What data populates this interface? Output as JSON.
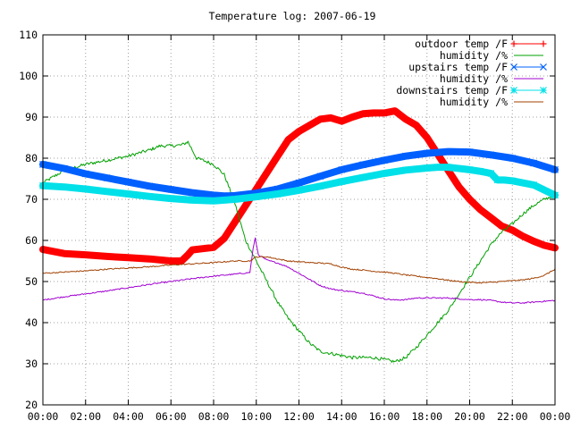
{
  "chart_data": {
    "type": "line",
    "title": "Temperature log: 2007-06-19",
    "xlabel": "",
    "ylabel": "",
    "xlim": [
      0,
      24
    ],
    "ylim": [
      20,
      110
    ],
    "grid": true,
    "legend_position": "top-right",
    "x_ticks": [
      "00:00",
      "02:00",
      "04:00",
      "06:00",
      "08:00",
      "10:00",
      "12:00",
      "14:00",
      "16:00",
      "18:00",
      "20:00",
      "22:00",
      "00:00"
    ],
    "y_ticks": [
      "20",
      "30",
      "40",
      "50",
      "60",
      "70",
      "80",
      "90",
      "100",
      "110"
    ],
    "x_unit": "hours",
    "series": [
      {
        "name": "outdoor temp /F",
        "color": "#ff0000",
        "marker": "plus",
        "heavy": true,
        "x": [
          0,
          1,
          2,
          3,
          4,
          5,
          6,
          6.5,
          6.8,
          7,
          7.5,
          8,
          8.5,
          9,
          9.5,
          10,
          10.5,
          11,
          11.5,
          12,
          12.5,
          13,
          13.5,
          14,
          14.5,
          15,
          15.5,
          16,
          16.5,
          17,
          17.5,
          18,
          18.5,
          19,
          19.5,
          20,
          20.5,
          21,
          21.5,
          22,
          22.5,
          23,
          23.5,
          24
        ],
        "y": [
          57.8,
          56.8,
          56.5,
          56.1,
          55.8,
          55.5,
          55.0,
          55.0,
          56.5,
          57.7,
          58.0,
          58.3,
          60.5,
          64.5,
          68.5,
          72.5,
          76.5,
          80.5,
          84.5,
          86.5,
          88.0,
          89.5,
          89.8,
          89.0,
          90.0,
          90.8,
          91.0,
          91.0,
          91.5,
          89.5,
          88.0,
          85.0,
          81.0,
          77.0,
          73.0,
          70.0,
          67.5,
          65.5,
          63.5,
          62.5,
          61.0,
          59.8,
          58.8,
          58.2
        ]
      },
      {
        "name": "humidity /%",
        "color": "#00a000",
        "marker": "none",
        "noise": 0.4,
        "x": [
          0,
          1,
          2,
          3,
          4,
          5,
          5.5,
          6,
          6.5,
          6.8,
          7.2,
          7.5,
          8,
          8.5,
          9,
          9.5,
          10,
          10.5,
          11,
          11.5,
          12,
          12.5,
          13,
          13.5,
          14,
          14.5,
          15,
          15.5,
          16,
          16.5,
          17,
          17.5,
          18,
          18.5,
          19,
          19.5,
          20,
          20.5,
          21,
          21.5,
          22,
          22.5,
          23,
          23.5,
          24
        ],
        "y": [
          74.0,
          77.0,
          78.5,
          79.5,
          80.5,
          82.0,
          83.0,
          83.0,
          83.2,
          84.0,
          80.0,
          79.5,
          78.5,
          76.0,
          69.0,
          60.0,
          55.0,
          50.0,
          45.0,
          41.0,
          38.0,
          35.0,
          33.0,
          32.5,
          32.0,
          31.5,
          31.5,
          31.5,
          31.0,
          30.5,
          31.5,
          34.0,
          37.0,
          40.0,
          43.0,
          47.0,
          51.0,
          55.0,
          59.0,
          62.0,
          64.0,
          66.5,
          68.5,
          70.0,
          71.0
        ]
      },
      {
        "name": "upstairs temp /F",
        "color": "#0060ff",
        "marker": "x",
        "heavy": true,
        "x": [
          0,
          1,
          2,
          3,
          4,
          5,
          6,
          7,
          8,
          8.5,
          9,
          10,
          11,
          12,
          13,
          14,
          15,
          16,
          17,
          18,
          19,
          20,
          21,
          22,
          23,
          24
        ],
        "y": [
          78.5,
          77.5,
          76.2,
          75.2,
          74.2,
          73.2,
          72.4,
          71.6,
          71.0,
          70.8,
          70.9,
          71.5,
          72.5,
          74.0,
          75.6,
          77.2,
          78.4,
          79.5,
          80.5,
          81.2,
          81.6,
          81.5,
          80.8,
          80.0,
          78.8,
          77.2
        ]
      },
      {
        "name": "humidity /%",
        "color": "#a000d0",
        "marker": "none",
        "noise": 0.15,
        "x": [
          0,
          1,
          2,
          3,
          4,
          5,
          6,
          7,
          8,
          9,
          9.7,
          9.85,
          9.95,
          10.1,
          10.5,
          11,
          11.5,
          12,
          12.5,
          13,
          13.5,
          14,
          14.5,
          15,
          15.5,
          16,
          16.5,
          17,
          17.5,
          18,
          18.5,
          19,
          19.5,
          20,
          20.5,
          21,
          21.5,
          22,
          22.5,
          23,
          23.5,
          24
        ],
        "y": [
          45.5,
          46.3,
          47.0,
          47.7,
          48.5,
          49.3,
          50.0,
          50.7,
          51.3,
          51.8,
          52.2,
          58.0,
          60.5,
          56.5,
          55.2,
          54.5,
          53.5,
          52.0,
          50.5,
          49.0,
          48.2,
          47.8,
          47.5,
          47.2,
          46.5,
          45.8,
          45.5,
          45.6,
          46.0,
          46.0,
          46.0,
          46.0,
          45.8,
          45.6,
          45.6,
          45.4,
          45.0,
          44.8,
          44.8,
          45.0,
          45.2,
          45.4
        ]
      },
      {
        "name": "downstairs temp /F",
        "color": "#00e0e8",
        "marker": "star",
        "heavy": true,
        "x": [
          0,
          1,
          2,
          3,
          4,
          5,
          6,
          7,
          8,
          9,
          10,
          11,
          12,
          13,
          14,
          15,
          16,
          17,
          18,
          18.5,
          19,
          20,
          20.5,
          21,
          21.3,
          21.6,
          22,
          23,
          24
        ],
        "y": [
          73.3,
          73.0,
          72.5,
          71.9,
          71.3,
          70.7,
          70.2,
          69.8,
          69.6,
          70.0,
          70.6,
          71.3,
          72.2,
          73.2,
          74.3,
          75.3,
          76.3,
          77.1,
          77.6,
          77.8,
          77.8,
          77.2,
          76.8,
          76.3,
          74.7,
          74.7,
          74.5,
          73.5,
          71.0
        ]
      },
      {
        "name": "humidity /%",
        "color": "#a04000",
        "marker": "none",
        "noise": 0.15,
        "x": [
          0,
          1,
          2,
          3,
          4,
          5,
          6,
          7,
          8,
          9,
          9.7,
          10,
          10.5,
          11,
          11.5,
          12,
          12.5,
          13,
          13.5,
          14,
          14.5,
          15,
          15.5,
          16,
          16.5,
          17,
          17.5,
          18,
          18.5,
          19,
          19.5,
          20,
          20.5,
          21,
          21.5,
          22,
          22.5,
          23,
          23.5,
          24
        ],
        "y": [
          52.0,
          52.3,
          52.6,
          53.0,
          53.3,
          53.6,
          54.0,
          54.3,
          54.6,
          55.0,
          55.0,
          56.0,
          56.0,
          55.5,
          55.0,
          54.8,
          54.6,
          54.5,
          54.3,
          53.5,
          53.0,
          52.8,
          52.5,
          52.3,
          52.0,
          51.6,
          51.3,
          51.0,
          50.7,
          50.3,
          50.0,
          49.8,
          49.7,
          49.8,
          50.0,
          50.2,
          50.4,
          50.8,
          51.5,
          53.0
        ]
      }
    ]
  }
}
